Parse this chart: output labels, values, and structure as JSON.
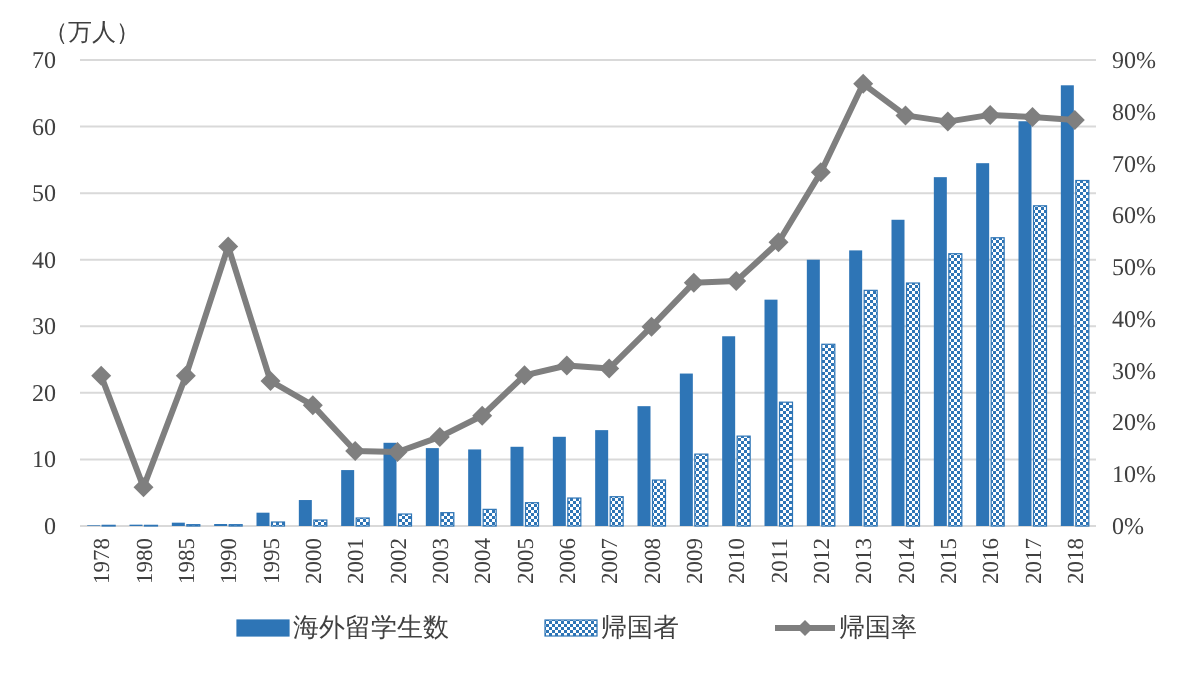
{
  "chart_data": {
    "type": "bar",
    "ylabel": "（万人）",
    "categories": [
      "1978",
      "1980",
      "1985",
      "1990",
      "1995",
      "2000",
      "2001",
      "2002",
      "2003",
      "2004",
      "2005",
      "2006",
      "2007",
      "2008",
      "2009",
      "2010",
      "2011",
      "2012",
      "2013",
      "2014",
      "2015",
      "2016",
      "2017",
      "2018"
    ],
    "series": [
      {
        "name": "海外留学生数",
        "color": "#2e75b6",
        "values": [
          0.1,
          0.2,
          0.5,
          0.3,
          2.0,
          3.9,
          8.4,
          12.5,
          11.7,
          11.5,
          11.9,
          13.4,
          14.4,
          18.0,
          22.9,
          28.5,
          34.0,
          40.0,
          41.4,
          46.0,
          52.4,
          54.5,
          60.8,
          66.2
        ]
      },
      {
        "name": "帰国者",
        "color": "#2e75b6",
        "values": [
          0.1,
          0.1,
          0.2,
          0.2,
          0.6,
          0.9,
          1.2,
          1.8,
          2.0,
          2.5,
          3.5,
          4.2,
          4.4,
          6.9,
          10.8,
          13.5,
          18.6,
          27.3,
          35.4,
          36.5,
          40.9,
          43.3,
          48.1,
          51.9
        ]
      },
      {
        "name": "帰国率",
        "color": "#7f7f7f",
        "type": "line",
        "axis": "y2",
        "marker": "diamond",
        "values": [
          29,
          7.5,
          29,
          54,
          28,
          23.3,
          14.5,
          14.3,
          17.2,
          21.3,
          29.1,
          31,
          30.4,
          38.5,
          47,
          47.3,
          54.8,
          68.3,
          85.4,
          79.3,
          78.1,
          79.4,
          79,
          78.4
        ]
      }
    ],
    "ylim": [
      0,
      70
    ],
    "yticks": [
      0,
      10,
      20,
      30,
      40,
      50,
      60,
      70
    ],
    "y2lim": [
      0,
      90
    ],
    "y2ticks": [
      {
        "value": 0,
        "label": "0%"
      },
      {
        "value": 10,
        "label": "10%"
      },
      {
        "value": 20,
        "label": "20%"
      },
      {
        "value": 30,
        "label": "30%"
      },
      {
        "value": 40,
        "label": "40%"
      },
      {
        "value": 50,
        "label": "50%"
      },
      {
        "value": 60,
        "label": "60%"
      },
      {
        "value": 70,
        "label": "70%"
      },
      {
        "value": 80,
        "label": "80%"
      },
      {
        "value": 90,
        "label": "90%"
      }
    ],
    "grid": "y",
    "legend": "bottom"
  }
}
